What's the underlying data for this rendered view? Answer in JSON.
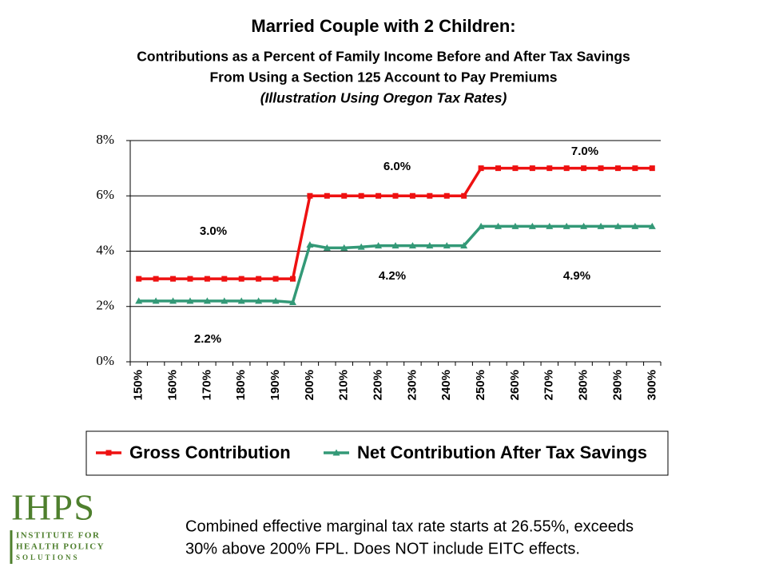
{
  "chart_data": {
    "type": "line",
    "title": "Married Couple with 2 Children:",
    "subtitle": [
      "Contributions as a Percent of Family Income Before and After Tax Savings",
      "From Using a Section 125 Account to Pay Premiums",
      "(Illustration Using Oregon Tax Rates)"
    ],
    "categories": [
      "150%",
      null,
      "160%",
      null,
      "170%",
      null,
      "180%",
      null,
      "190%",
      null,
      "200%",
      null,
      "210%",
      null,
      "220%",
      null,
      "230%",
      null,
      "240%",
      null,
      "250%",
      null,
      "260%",
      null,
      "270%",
      null,
      "280%",
      null,
      "290%",
      null,
      "300%"
    ],
    "series": [
      {
        "name": "Gross Contribution",
        "color": "#ee1111",
        "marker": "square",
        "values": [
          3,
          3,
          3,
          3,
          3,
          3,
          3,
          3,
          3,
          3,
          6,
          6,
          6,
          6,
          6,
          6,
          6,
          6,
          6,
          6,
          7,
          7,
          7,
          7,
          7,
          7,
          7,
          7,
          7,
          7,
          7
        ]
      },
      {
        "name": "Net Contribution After Tax Savings",
        "color": "#339977",
        "marker": "triangle",
        "values": [
          2.2,
          2.2,
          2.2,
          2.2,
          2.2,
          2.2,
          2.2,
          2.2,
          2.2,
          2.15,
          4.23,
          4.12,
          4.12,
          4.15,
          4.2,
          4.2,
          4.2,
          4.2,
          4.2,
          4.2,
          4.9,
          4.9,
          4.9,
          4.9,
          4.9,
          4.9,
          4.9,
          4.9,
          4.9,
          4.9,
          4.9
        ]
      }
    ],
    "annotations": [
      "3.0%",
      "6.0%",
      "7.0%",
      "2.2%",
      "4.2%",
      "4.9%"
    ],
    "ylim": [
      0,
      8
    ],
    "yticks": [
      {
        "value": 0,
        "label": "0%"
      },
      {
        "value": 2,
        "label": "2%"
      },
      {
        "value": 4,
        "label": "4%"
      },
      {
        "value": 6,
        "label": "6%"
      },
      {
        "value": 8,
        "label": "8%"
      }
    ],
    "grid": true,
    "legend": "bottom",
    "footnote": [
      "Combined effective marginal tax rate starts at 26.55%, exceeds",
      "30% above 200% FPL.  Does NOT include EITC effects."
    ]
  },
  "logo": {
    "acronym": "IHPS",
    "lines": [
      "Institute for",
      "Health Policy",
      "Solutions"
    ]
  }
}
